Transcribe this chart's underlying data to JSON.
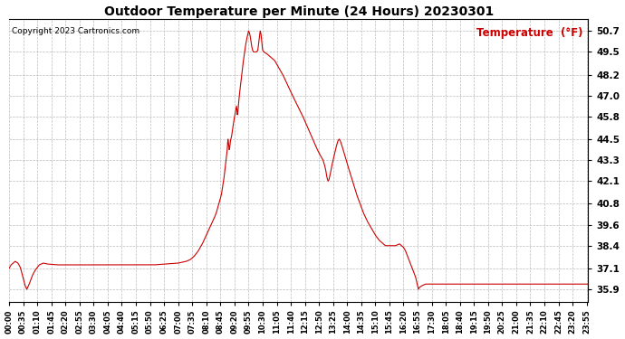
{
  "title": "Outdoor Temperature per Minute (24 Hours) 20230301",
  "copyright": "Copyright 2023 Cartronics.com",
  "legend_label": "Temperature  (°F)",
  "line_color": "#cc0000",
  "bg_color": "#ffffff",
  "grid_color": "#bbbbbb",
  "yticks": [
    35.9,
    37.1,
    38.4,
    39.6,
    40.8,
    42.1,
    43.3,
    44.5,
    45.8,
    47.0,
    48.2,
    49.5,
    50.7
  ],
  "ylim": [
    35.2,
    51.4
  ],
  "xlim": [
    0,
    1439
  ],
  "xtick_positions": [
    0,
    35,
    70,
    105,
    140,
    175,
    210,
    245,
    280,
    315,
    350,
    385,
    420,
    455,
    490,
    525,
    560,
    595,
    630,
    665,
    700,
    735,
    770,
    805,
    840,
    875,
    910,
    945,
    980,
    1015,
    1050,
    1085,
    1120,
    1155,
    1190,
    1225,
    1260,
    1295,
    1330,
    1365,
    1400,
    1435
  ],
  "xtick_labels": [
    "00:00",
    "00:35",
    "01:10",
    "01:45",
    "02:20",
    "02:55",
    "03:30",
    "04:05",
    "04:40",
    "05:15",
    "05:50",
    "06:25",
    "07:00",
    "07:35",
    "08:10",
    "08:45",
    "09:20",
    "09:55",
    "10:30",
    "11:05",
    "11:40",
    "12:15",
    "12:50",
    "13:25",
    "14:00",
    "14:35",
    "15:10",
    "15:45",
    "16:20",
    "16:55",
    "17:30",
    "18:05",
    "18:40",
    "19:15",
    "19:50",
    "20:25",
    "21:00",
    "21:35",
    "22:10",
    "22:45",
    "23:20",
    "23:55"
  ],
  "waypoints": [
    [
      0,
      37.1
    ],
    [
      5,
      37.3
    ],
    [
      15,
      37.5
    ],
    [
      22,
      37.4
    ],
    [
      28,
      37.15
    ],
    [
      33,
      36.7
    ],
    [
      40,
      36.1
    ],
    [
      44,
      35.9
    ],
    [
      50,
      36.2
    ],
    [
      58,
      36.7
    ],
    [
      65,
      37.0
    ],
    [
      75,
      37.3
    ],
    [
      85,
      37.4
    ],
    [
      95,
      37.35
    ],
    [
      120,
      37.3
    ],
    [
      150,
      37.3
    ],
    [
      180,
      37.3
    ],
    [
      210,
      37.3
    ],
    [
      240,
      37.3
    ],
    [
      270,
      37.3
    ],
    [
      300,
      37.3
    ],
    [
      330,
      37.3
    ],
    [
      360,
      37.3
    ],
    [
      390,
      37.35
    ],
    [
      420,
      37.4
    ],
    [
      440,
      37.5
    ],
    [
      450,
      37.6
    ],
    [
      460,
      37.8
    ],
    [
      470,
      38.1
    ],
    [
      480,
      38.5
    ],
    [
      490,
      39.0
    ],
    [
      500,
      39.5
    ],
    [
      510,
      40.0
    ],
    [
      515,
      40.3
    ],
    [
      520,
      40.7
    ],
    [
      525,
      41.1
    ],
    [
      528,
      41.4
    ],
    [
      530,
      41.7
    ],
    [
      532,
      42.0
    ],
    [
      534,
      42.3
    ],
    [
      536,
      42.7
    ],
    [
      538,
      43.1
    ],
    [
      540,
      43.5
    ],
    [
      542,
      43.9
    ],
    [
      543,
      44.3
    ],
    [
      544,
      44.5
    ],
    [
      545,
      44.3
    ],
    [
      546,
      44.1
    ],
    [
      547,
      43.9
    ],
    [
      548,
      44.0
    ],
    [
      549,
      44.2
    ],
    [
      550,
      44.4
    ],
    [
      551,
      44.5
    ],
    [
      552,
      44.6
    ],
    [
      553,
      44.7
    ],
    [
      555,
      45.0
    ],
    [
      558,
      45.5
    ],
    [
      561,
      45.9
    ],
    [
      563,
      46.2
    ],
    [
      565,
      46.4
    ],
    [
      566,
      46.2
    ],
    [
      567,
      45.9
    ],
    [
      568,
      46.0
    ],
    [
      569,
      46.2
    ],
    [
      570,
      46.5
    ],
    [
      572,
      47.0
    ],
    [
      575,
      47.6
    ],
    [
      578,
      48.2
    ],
    [
      581,
      48.8
    ],
    [
      584,
      49.3
    ],
    [
      587,
      49.8
    ],
    [
      590,
      50.2
    ],
    [
      593,
      50.5
    ],
    [
      595,
      50.7
    ],
    [
      597,
      50.6
    ],
    [
      599,
      50.4
    ],
    [
      601,
      50.1
    ],
    [
      603,
      49.8
    ],
    [
      605,
      49.6
    ],
    [
      607,
      49.5
    ],
    [
      610,
      49.5
    ],
    [
      615,
      49.5
    ],
    [
      618,
      49.6
    ],
    [
      620,
      50.0
    ],
    [
      622,
      50.4
    ],
    [
      624,
      50.7
    ],
    [
      626,
      50.5
    ],
    [
      628,
      50.0
    ],
    [
      630,
      49.6
    ],
    [
      633,
      49.5
    ],
    [
      640,
      49.4
    ],
    [
      650,
      49.2
    ],
    [
      660,
      49.0
    ],
    [
      670,
      48.6
    ],
    [
      680,
      48.2
    ],
    [
      690,
      47.7
    ],
    [
      700,
      47.2
    ],
    [
      715,
      46.5
    ],
    [
      730,
      45.8
    ],
    [
      745,
      45.0
    ],
    [
      758,
      44.3
    ],
    [
      768,
      43.8
    ],
    [
      775,
      43.5
    ],
    [
      780,
      43.3
    ],
    [
      784,
      43.0
    ],
    [
      787,
      42.7
    ],
    [
      789,
      42.4
    ],
    [
      791,
      42.2
    ],
    [
      793,
      42.1
    ],
    [
      795,
      42.2
    ],
    [
      798,
      42.5
    ],
    [
      802,
      43.0
    ],
    [
      807,
      43.5
    ],
    [
      812,
      44.0
    ],
    [
      817,
      44.4
    ],
    [
      820,
      44.5
    ],
    [
      823,
      44.4
    ],
    [
      826,
      44.2
    ],
    [
      830,
      43.9
    ],
    [
      835,
      43.5
    ],
    [
      840,
      43.1
    ],
    [
      848,
      42.5
    ],
    [
      856,
      41.9
    ],
    [
      864,
      41.3
    ],
    [
      872,
      40.8
    ],
    [
      880,
      40.3
    ],
    [
      890,
      39.8
    ],
    [
      900,
      39.4
    ],
    [
      910,
      39.0
    ],
    [
      920,
      38.7
    ],
    [
      930,
      38.5
    ],
    [
      935,
      38.4
    ],
    [
      950,
      38.4
    ],
    [
      960,
      38.4
    ],
    [
      970,
      38.5
    ],
    [
      975,
      38.4
    ],
    [
      980,
      38.3
    ],
    [
      985,
      38.1
    ],
    [
      990,
      37.8
    ],
    [
      995,
      37.5
    ],
    [
      1000,
      37.2
    ],
    [
      1005,
      36.9
    ],
    [
      1010,
      36.6
    ],
    [
      1013,
      36.3
    ],
    [
      1015,
      36.1
    ],
    [
      1017,
      35.9
    ],
    [
      1019,
      36.0
    ],
    [
      1025,
      36.1
    ],
    [
      1035,
      36.2
    ],
    [
      1060,
      36.2
    ],
    [
      1090,
      36.2
    ],
    [
      1120,
      36.2
    ],
    [
      1150,
      36.2
    ],
    [
      1180,
      36.2
    ],
    [
      1210,
      36.2
    ],
    [
      1240,
      36.2
    ],
    [
      1270,
      36.2
    ],
    [
      1300,
      36.2
    ],
    [
      1330,
      36.2
    ],
    [
      1360,
      36.2
    ],
    [
      1390,
      36.2
    ],
    [
      1420,
      36.2
    ],
    [
      1439,
      36.2
    ]
  ]
}
